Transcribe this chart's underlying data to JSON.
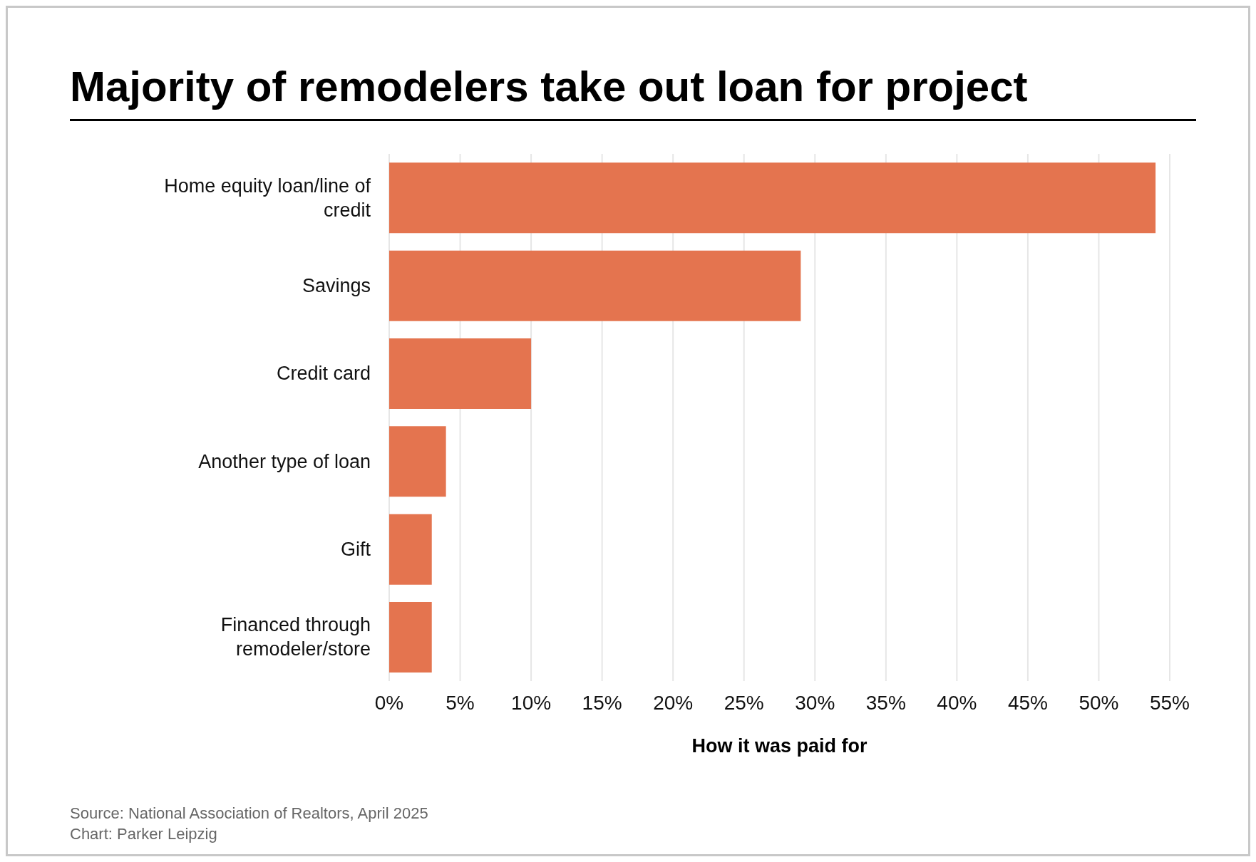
{
  "chart_data": {
    "type": "bar",
    "orientation": "horizontal",
    "title": "Majority of remodelers take out loan for project",
    "xlabel": "How it was paid for",
    "categories": [
      "Home equity loan/line of credit",
      "Savings",
      "Credit card",
      "Another type of loan",
      "Gift",
      "Financed through remodeler/store"
    ],
    "values": [
      54,
      29,
      10,
      4,
      3,
      3
    ],
    "color": "#e4744f",
    "xlim": [
      0,
      55
    ],
    "xticks": [
      {
        "value": 0,
        "label": "0%"
      },
      {
        "value": 5,
        "label": "5%"
      },
      {
        "value": 10,
        "label": "10%"
      },
      {
        "value": 15,
        "label": "15%"
      },
      {
        "value": 20,
        "label": "20%"
      },
      {
        "value": 25,
        "label": "25%"
      },
      {
        "value": 30,
        "label": "30%"
      },
      {
        "value": 35,
        "label": "35%"
      },
      {
        "value": 40,
        "label": "40%"
      },
      {
        "value": 45,
        "label": "45%"
      },
      {
        "value": 50,
        "label": "50%"
      },
      {
        "value": 55,
        "label": "55%"
      }
    ],
    "grid": "x",
    "annotations": [
      "Source: National Association of Realtors, April 2025",
      "Chart: Parker Leipzig"
    ]
  }
}
